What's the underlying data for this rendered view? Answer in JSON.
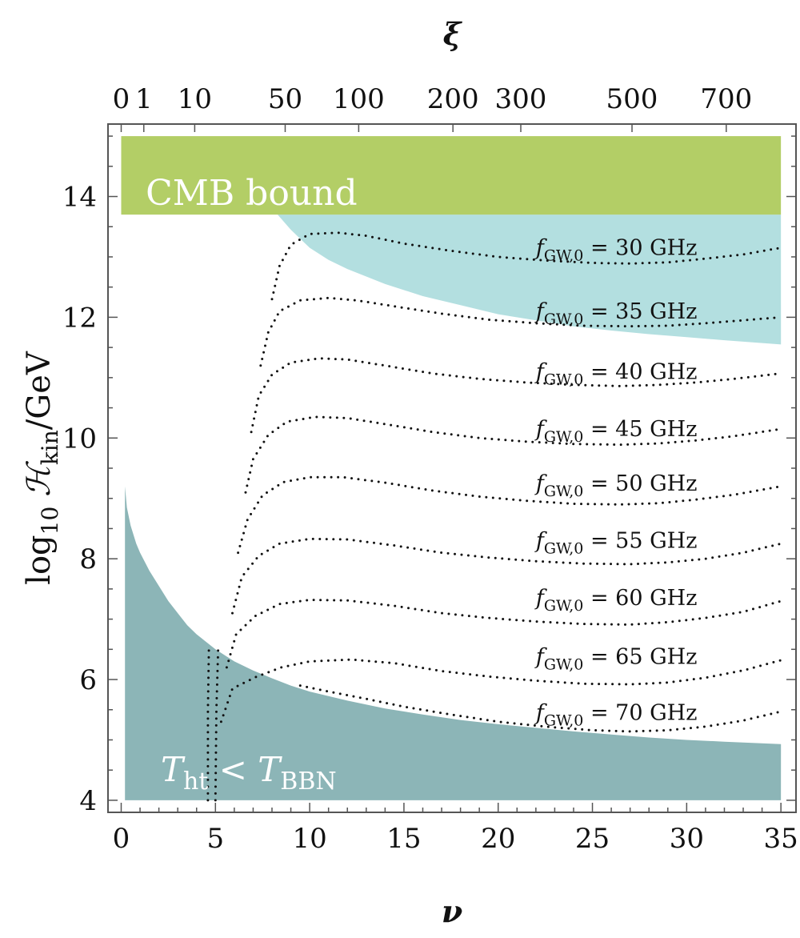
{
  "colors": {
    "cmb": "#b3ce66",
    "upper_excluded": "#b3dfe0",
    "bbn": "#8cb5b7",
    "frame": "#555555",
    "curve": "#111111"
  },
  "chart_data": {
    "type": "line",
    "title": "",
    "xlabel": "ν",
    "ylabel_prefix": "log",
    "ylabel_sub": "10",
    "ylabel_symbol": "ℋ",
    "ylabel_symbol_sub": "kin",
    "ylabel_unit": "/GeV",
    "top_axis_label": "ξ",
    "xlim": [
      -0.7,
      35.8
    ],
    "ylim": [
      3.8,
      15.2
    ],
    "x_ticks": [
      0,
      5,
      10,
      15,
      20,
      25,
      30,
      35
    ],
    "y_ticks": [
      4,
      6,
      8,
      10,
      12,
      14
    ],
    "top_ticks": [
      {
        "label": "0",
        "nu": 0.0
      },
      {
        "label": "1",
        "nu": 1.2
      },
      {
        "label": "10",
        "nu": 3.9
      },
      {
        "label": "50",
        "nu": 8.7
      },
      {
        "label": "100",
        "nu": 12.6
      },
      {
        "label": "200",
        "nu": 17.6
      },
      {
        "label": "300",
        "nu": 21.2
      },
      {
        "label": "500",
        "nu": 27.1
      },
      {
        "label": "700",
        "nu": 32.1
      }
    ],
    "regions": {
      "cmb": {
        "label": "CMB bound",
        "x_range": [
          0,
          35
        ],
        "y_range": [
          13.7,
          15.0
        ]
      },
      "upper_excluded": {
        "x": [
          8.3,
          9,
          10,
          11,
          12,
          14,
          16,
          18,
          20,
          22,
          24,
          26,
          28,
          30,
          32,
          35
        ],
        "y": [
          13.7,
          13.45,
          13.15,
          12.95,
          12.8,
          12.55,
          12.35,
          12.2,
          12.05,
          11.95,
          11.85,
          11.78,
          11.72,
          11.67,
          11.62,
          11.55
        ]
      },
      "bbn": {
        "label_main": "T",
        "label_sub1": "ht",
        "label_op": " < ",
        "label_main2": "T",
        "label_sub2": "BBN",
        "y_bottom": 4.0,
        "x": [
          0.2,
          0.3,
          0.5,
          0.8,
          1.0,
          1.5,
          2,
          2.5,
          3,
          3.5,
          4,
          5,
          6,
          7,
          8,
          9,
          10,
          12,
          14,
          16,
          18,
          20,
          22,
          24,
          26,
          28,
          30,
          32,
          35
        ],
        "y": [
          9.2,
          8.85,
          8.55,
          8.25,
          8.1,
          7.8,
          7.55,
          7.3,
          7.1,
          6.9,
          6.75,
          6.5,
          6.3,
          6.15,
          6.02,
          5.9,
          5.8,
          5.65,
          5.52,
          5.42,
          5.33,
          5.26,
          5.2,
          5.14,
          5.09,
          5.04,
          5.0,
          4.97,
          4.93
        ]
      }
    },
    "series": [
      {
        "name": "30 GHz",
        "x": [
          8.0,
          8.4,
          9.0,
          10.0,
          11.5,
          13.0,
          15.0,
          17.5,
          20.0,
          22.5,
          25.0,
          27.0,
          29.0,
          31.0,
          33.0,
          35.0
        ],
        "y": [
          12.3,
          12.85,
          13.2,
          13.38,
          13.4,
          13.35,
          13.22,
          13.1,
          13.0,
          12.94,
          12.9,
          12.89,
          12.91,
          12.97,
          13.04,
          13.15
        ]
      },
      {
        "name": "35 GHz",
        "x": [
          7.4,
          7.8,
          8.4,
          9.5,
          11.0,
          12.5,
          14.5,
          17.0,
          19.5,
          22.0,
          24.5,
          27.0,
          29.0,
          31.0,
          33.0,
          35.0
        ],
        "y": [
          11.2,
          11.75,
          12.1,
          12.28,
          12.32,
          12.28,
          12.18,
          12.06,
          11.96,
          11.9,
          11.86,
          11.85,
          11.86,
          11.9,
          11.95,
          12.0
        ]
      },
      {
        "name": "40 GHz",
        "x": [
          6.9,
          7.3,
          8.0,
          9.0,
          10.5,
          12.0,
          14.0,
          16.5,
          19.0,
          21.5,
          24.0,
          26.5,
          28.5,
          30.5,
          32.5,
          35.0
        ],
        "y": [
          10.1,
          10.7,
          11.05,
          11.25,
          11.32,
          11.3,
          11.2,
          11.07,
          10.98,
          10.92,
          10.88,
          10.86,
          10.88,
          10.92,
          10.98,
          11.07
        ]
      },
      {
        "name": "45 GHz",
        "x": [
          6.6,
          7.0,
          7.8,
          8.8,
          10.3,
          12.0,
          14.0,
          16.5,
          19.0,
          21.5,
          24.0,
          26.5,
          28.5,
          30.5,
          32.5,
          35.0
        ],
        "y": [
          9.1,
          9.65,
          10.05,
          10.27,
          10.35,
          10.33,
          10.23,
          10.1,
          10.0,
          9.94,
          9.9,
          9.89,
          9.91,
          9.96,
          10.03,
          10.15
        ]
      },
      {
        "name": "50 GHz",
        "x": [
          6.2,
          6.7,
          7.5,
          8.6,
          10.0,
          11.8,
          14.0,
          16.5,
          19.0,
          21.5,
          24.0,
          26.5,
          28.5,
          30.5,
          32.5,
          35.0
        ],
        "y": [
          8.1,
          8.65,
          9.05,
          9.27,
          9.35,
          9.35,
          9.26,
          9.13,
          9.03,
          8.96,
          8.91,
          8.9,
          8.92,
          8.98,
          9.06,
          9.2
        ]
      },
      {
        "name": "55 GHz",
        "x": [
          5.9,
          6.4,
          7.3,
          8.4,
          10.0,
          12.0,
          14.5,
          17.0,
          19.5,
          22.0,
          24.5,
          27.0,
          29.0,
          31.0,
          33.0,
          35.0
        ],
        "y": [
          7.1,
          7.7,
          8.05,
          8.25,
          8.33,
          8.32,
          8.22,
          8.1,
          8.02,
          7.96,
          7.92,
          7.91,
          7.94,
          8.0,
          8.1,
          8.25
        ]
      },
      {
        "name": "60 GHz",
        "x": [
          5.6,
          6.1,
          7.1,
          8.4,
          10.0,
          12.0,
          14.5,
          17.0,
          19.5,
          22.0,
          24.5,
          27.0,
          29.0,
          31.0,
          33.0,
          35.0
        ],
        "y": [
          6.2,
          6.75,
          7.05,
          7.25,
          7.32,
          7.31,
          7.22,
          7.1,
          7.02,
          6.96,
          6.92,
          6.91,
          6.95,
          7.02,
          7.12,
          7.3
        ]
      },
      {
        "name": "65 GHz",
        "x": [
          5.3,
          5.9,
          7.2,
          8.5,
          10.0,
          12.2,
          14.5,
          17.0,
          19.5,
          22.0,
          24.5,
          27.0,
          29.0,
          31.0,
          33.0,
          35.0
        ],
        "y": [
          5.3,
          5.85,
          6.05,
          6.2,
          6.3,
          6.33,
          6.27,
          6.14,
          6.05,
          5.98,
          5.93,
          5.92,
          5.95,
          6.03,
          6.15,
          6.32
        ]
      },
      {
        "name": "70 GHz",
        "x": [
          9.5,
          11.0,
          13.0,
          15.0,
          17.5,
          20.0,
          22.5,
          25.0,
          27.0,
          29.0,
          31.0,
          33.0,
          35.0
        ],
        "y": [
          5.9,
          5.8,
          5.68,
          5.55,
          5.42,
          5.3,
          5.22,
          5.16,
          5.14,
          5.16,
          5.22,
          5.32,
          5.47
        ]
      },
      {
        "name": "near-vertical continuation A",
        "x": [
          4.6,
          4.6,
          4.65
        ],
        "y": [
          4.0,
          5.5,
          6.5
        ]
      },
      {
        "name": "near-vertical continuation B",
        "x": [
          5.0,
          5.05,
          5.15
        ],
        "y": [
          4.0,
          5.5,
          6.55
        ]
      }
    ],
    "curve_labels": [
      {
        "f_main": "f",
        "f_sub": "GW,0",
        "text": " = 30 GHz",
        "y": 13.15
      },
      {
        "f_main": "f",
        "f_sub": "GW,0",
        "text": " = 35 GHz",
        "y": 12.1
      },
      {
        "f_main": "f",
        "f_sub": "GW,0",
        "text": " = 40 GHz",
        "y": 11.1
      },
      {
        "f_main": "f",
        "f_sub": "GW,0",
        "text": " = 45 GHz",
        "y": 10.15
      },
      {
        "f_main": "f",
        "f_sub": "GW,0",
        "text": " = 50 GHz",
        "y": 9.25
      },
      {
        "f_main": "f",
        "f_sub": "GW,0",
        "text": " = 55 GHz",
        "y": 8.3
      },
      {
        "f_main": "f",
        "f_sub": "GW,0",
        "text": " = 60 GHz",
        "y": 7.35
      },
      {
        "f_main": "f",
        "f_sub": "GW,0",
        "text": " = 65 GHz",
        "y": 6.38
      },
      {
        "f_main": "f",
        "f_sub": "GW,0",
        "text": " = 70 GHz",
        "y": 5.45
      }
    ]
  }
}
